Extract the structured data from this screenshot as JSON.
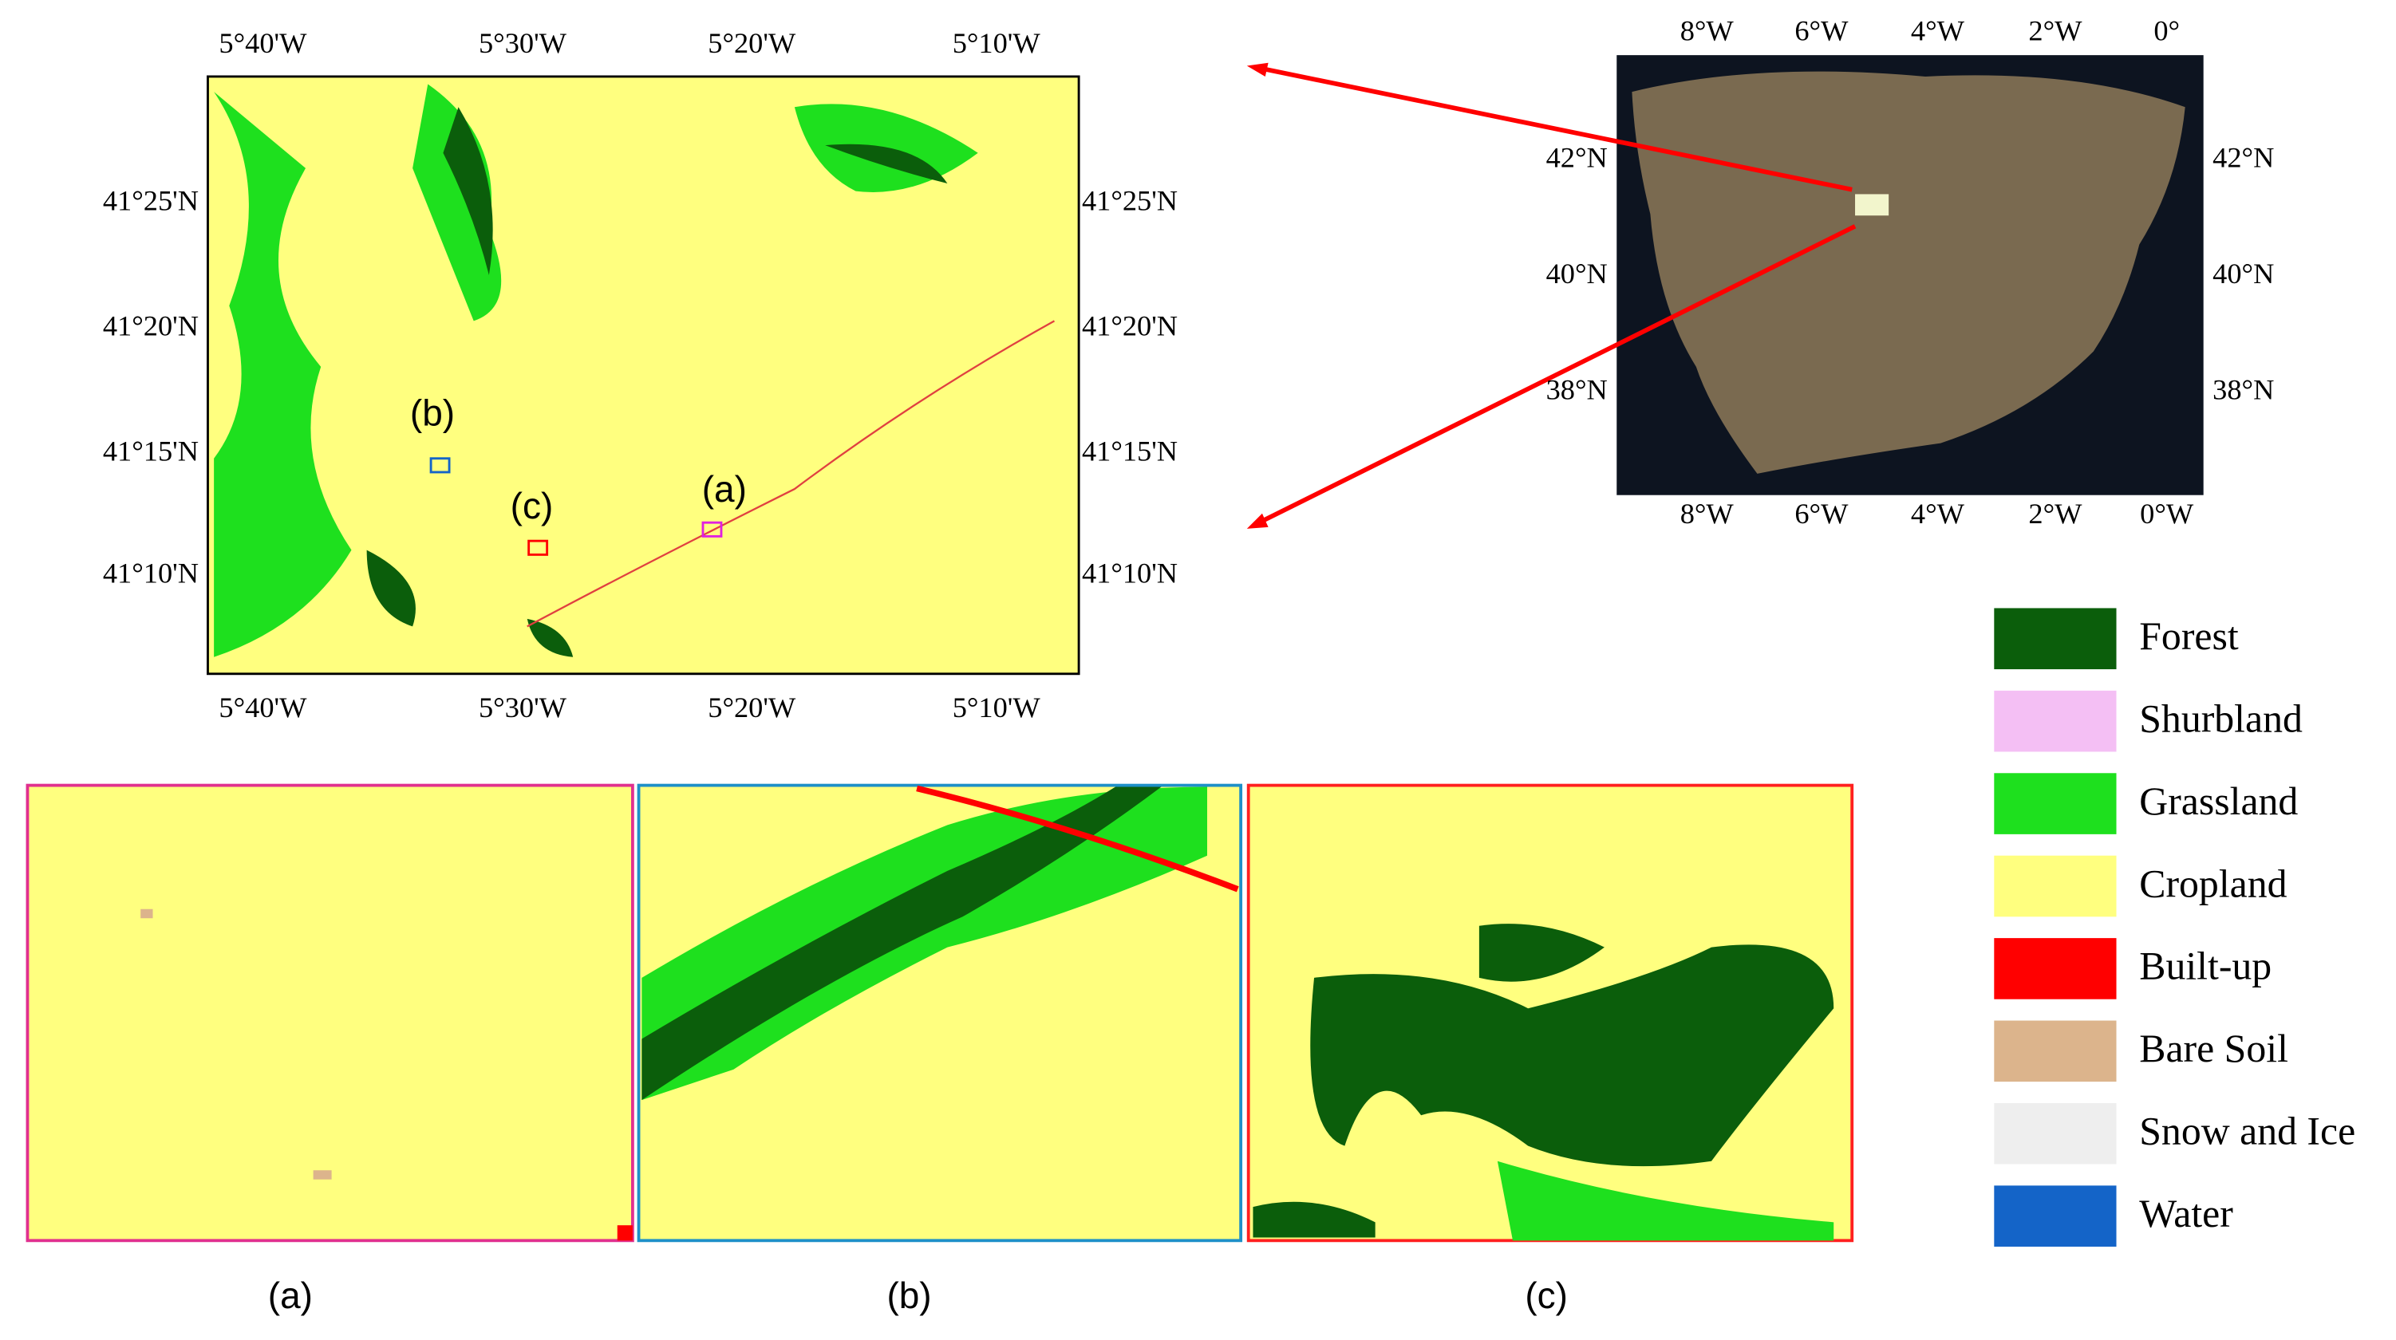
{
  "main_map": {
    "x_labels_top": [
      "5°40'W",
      "5°30'W",
      "5°20'W",
      "5°10'W"
    ],
    "x_labels_bottom": [
      "5°40'W",
      "5°30'W",
      "5°20'W",
      "5°10'W"
    ],
    "y_labels_left": [
      "41°25'N",
      "41°20'N",
      "41°15'N",
      "41°10'N"
    ],
    "y_labels_right": [
      "41°25'N",
      "41°20'N",
      "41°15'N",
      "41°10'N"
    ],
    "inset_labels": [
      "(a)",
      "(b)",
      "(c)"
    ]
  },
  "overview_map": {
    "x_labels_top": [
      "8°W",
      "6°W",
      "4°W",
      "2°W",
      "0°"
    ],
    "x_labels_bottom": [
      "8°W",
      "6°W",
      "4°W",
      "2°W",
      "0°W"
    ],
    "y_labels_left": [
      "42°N",
      "40°N",
      "38°N"
    ],
    "y_labels_right": [
      "42°N",
      "40°N",
      "38°N"
    ]
  },
  "legend": [
    {
      "label": "Forest",
      "color": "#0b5e0b"
    },
    {
      "label": "Shurbland",
      "color": "#f4bff4"
    },
    {
      "label": "Grassland",
      "color": "#1ee01e"
    },
    {
      "label": "Cropland",
      "color": "#ffff7f"
    },
    {
      "label": "Built-up",
      "color": "#ff0000"
    },
    {
      "label": "Bare Soil",
      "color": "#dcb48c"
    },
    {
      "label": "Snow and Ice",
      "color": "#eeeeee"
    },
    {
      "label": "Water",
      "color": "#1464c8"
    }
  ],
  "panels": [
    "(a)",
    "(b)",
    "(c)"
  ]
}
